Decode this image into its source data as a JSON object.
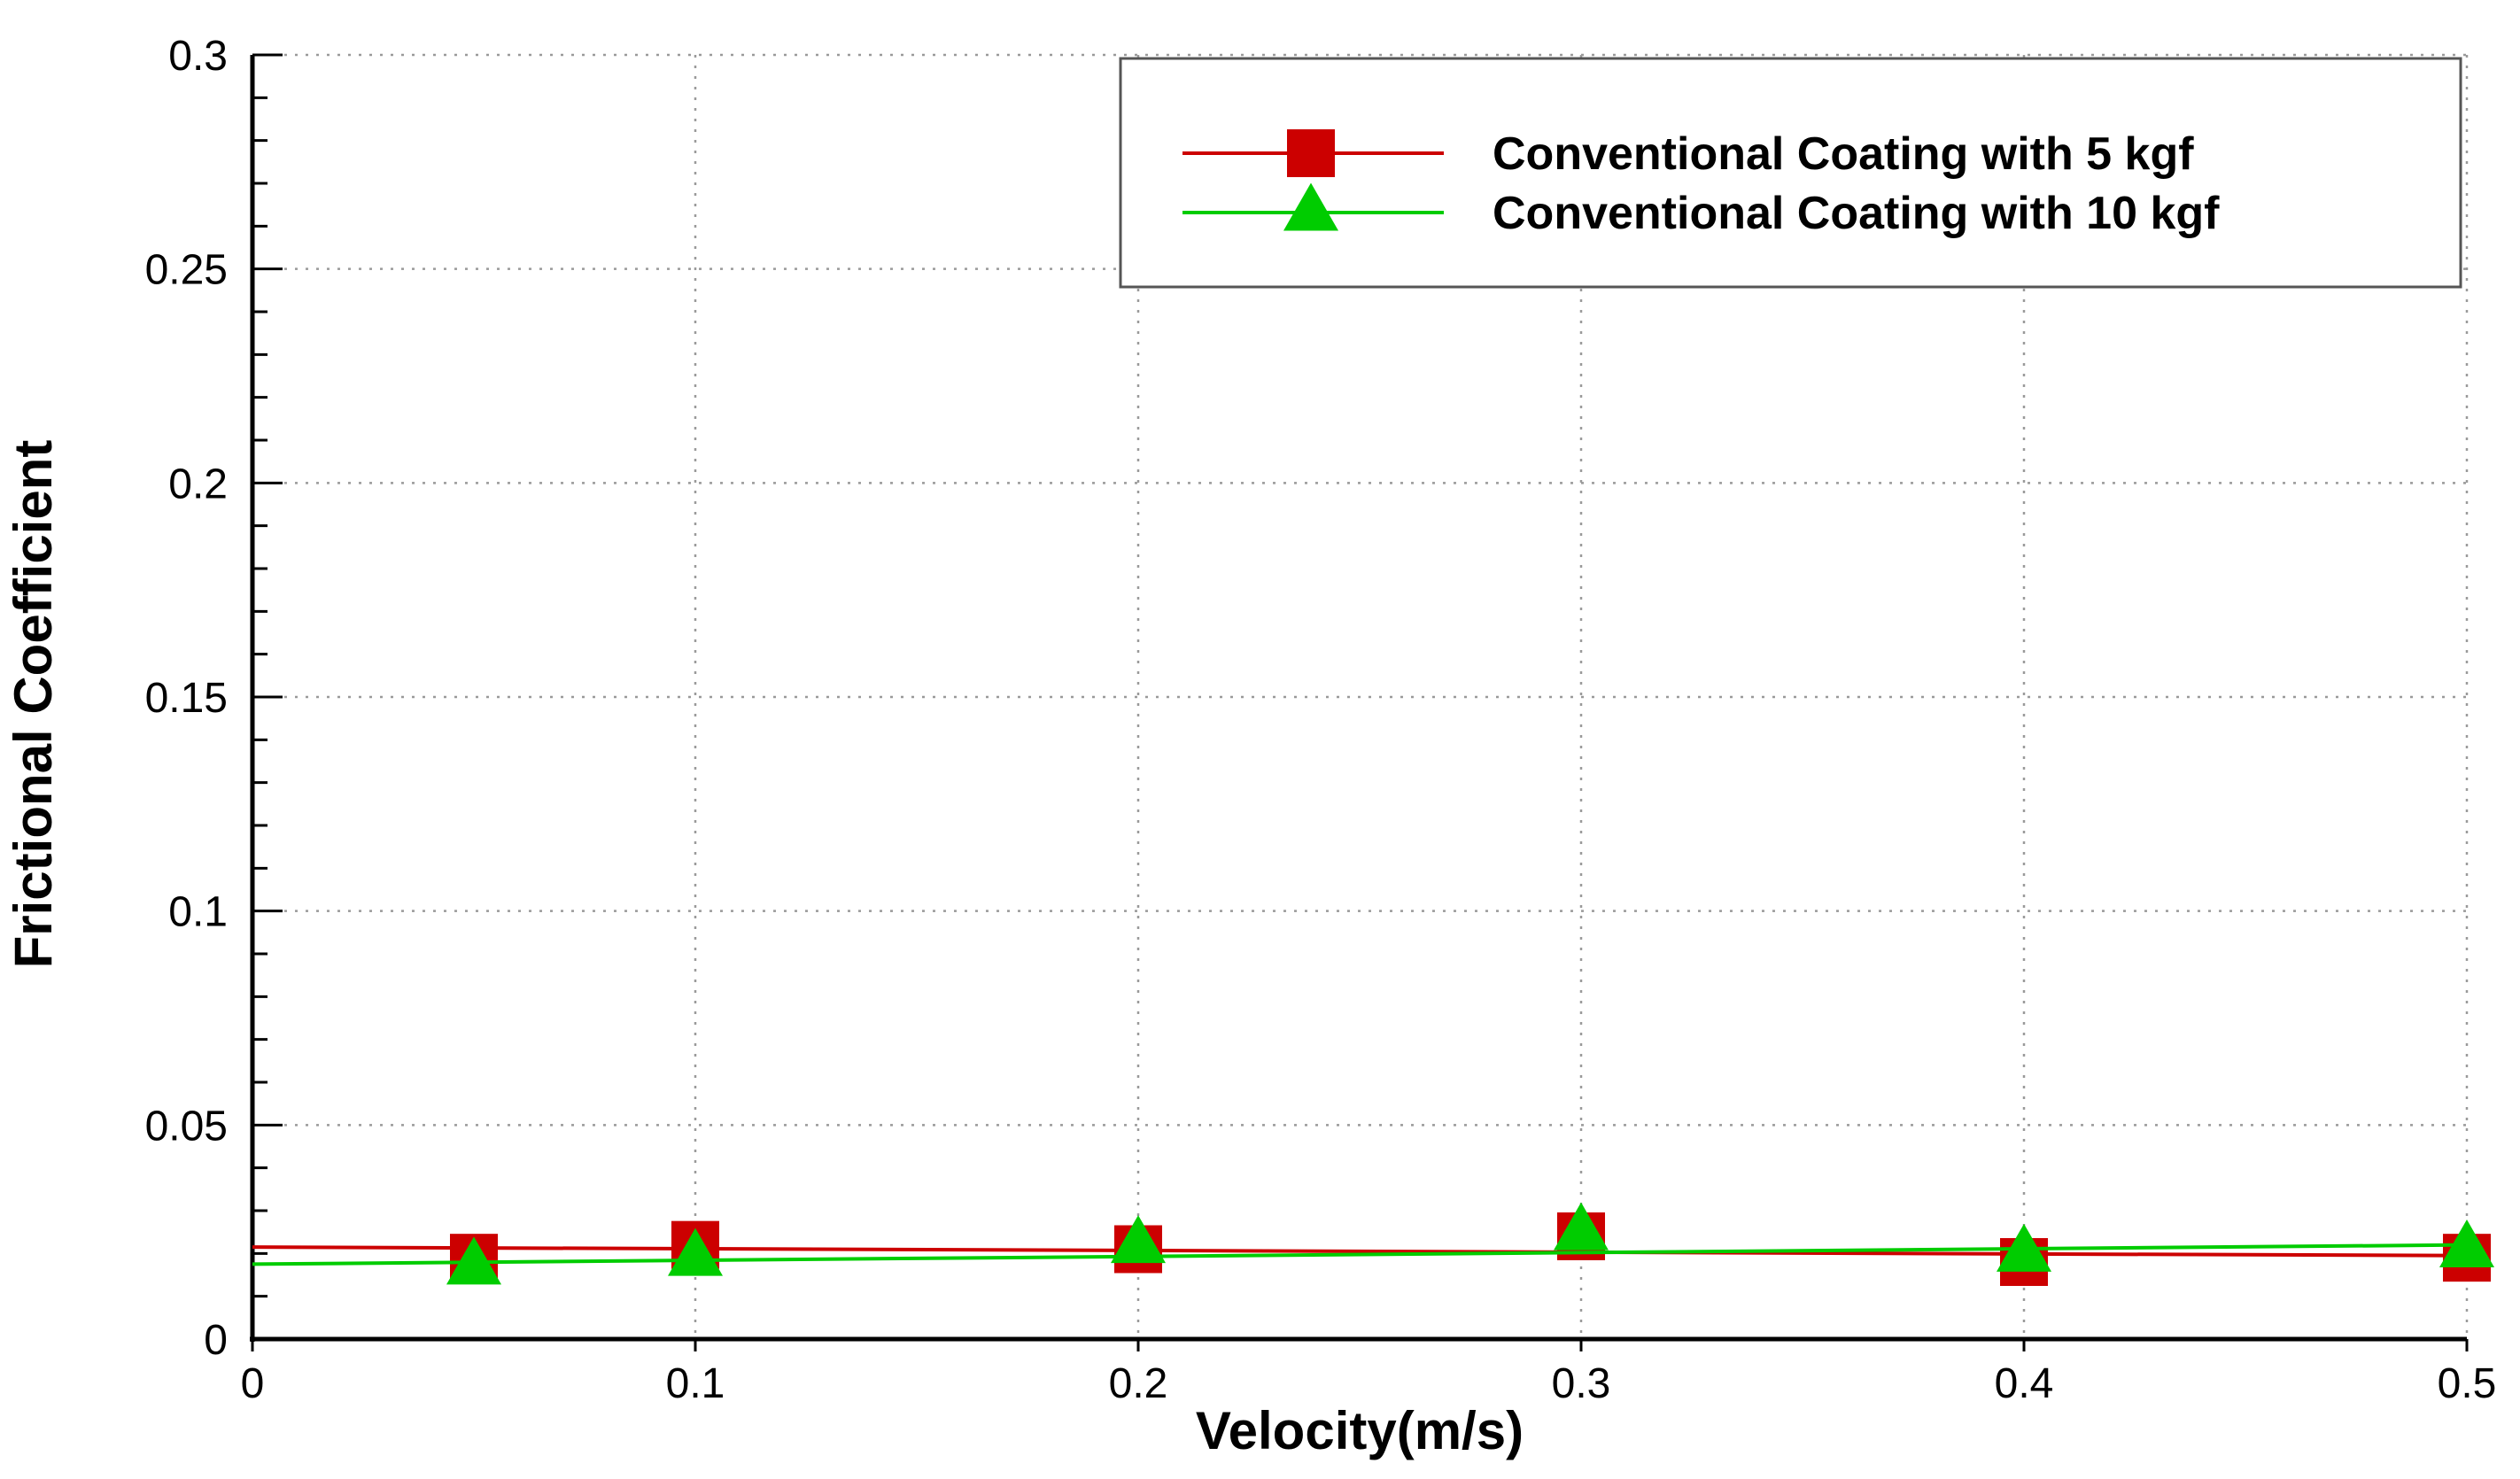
{
  "chart_data": {
    "type": "line",
    "title": "",
    "xlabel": "Velocity(m/s)",
    "ylabel": "Frictional Coefficient",
    "xlim": [
      0,
      0.5
    ],
    "ylim": [
      0,
      0.3
    ],
    "grid": true,
    "x_ticks": [
      0,
      0.1,
      0.2,
      0.3,
      0.4,
      0.5
    ],
    "x_tick_labels": [
      "0",
      "0.1",
      "0.2",
      "0.3",
      "0.4",
      "0.5"
    ],
    "y_ticks": [
      0,
      0.05,
      0.1,
      0.15,
      0.2,
      0.25,
      0.3
    ],
    "y_tick_labels": [
      "0",
      "0.05",
      "0.1",
      "0.15",
      "0.2",
      "0.25",
      "0.3"
    ],
    "legend_position": "top-right",
    "series": [
      {
        "name": "Conventional Coating with 5 kgf",
        "marker": "square",
        "color": "#cc0000",
        "line_color": "#cc0000",
        "x": [
          0.05,
          0.1,
          0.2,
          0.3,
          0.4,
          0.5
        ],
        "y": [
          0.019,
          0.022,
          0.021,
          0.024,
          0.018,
          0.019
        ],
        "fit": [
          [
            0,
            0.0215
          ],
          [
            0.5,
            0.0195
          ]
        ]
      },
      {
        "name": "Conventional Coating with 10 kgf",
        "marker": "triangle",
        "color": "#00cc00",
        "line_color": "#00cc00",
        "x": [
          0.05,
          0.1,
          0.2,
          0.3,
          0.4,
          0.5
        ],
        "y": [
          0.017,
          0.019,
          0.022,
          0.025,
          0.02,
          0.021
        ],
        "fit": [
          [
            0,
            0.0175
          ],
          [
            0.5,
            0.022
          ]
        ]
      }
    ]
  }
}
